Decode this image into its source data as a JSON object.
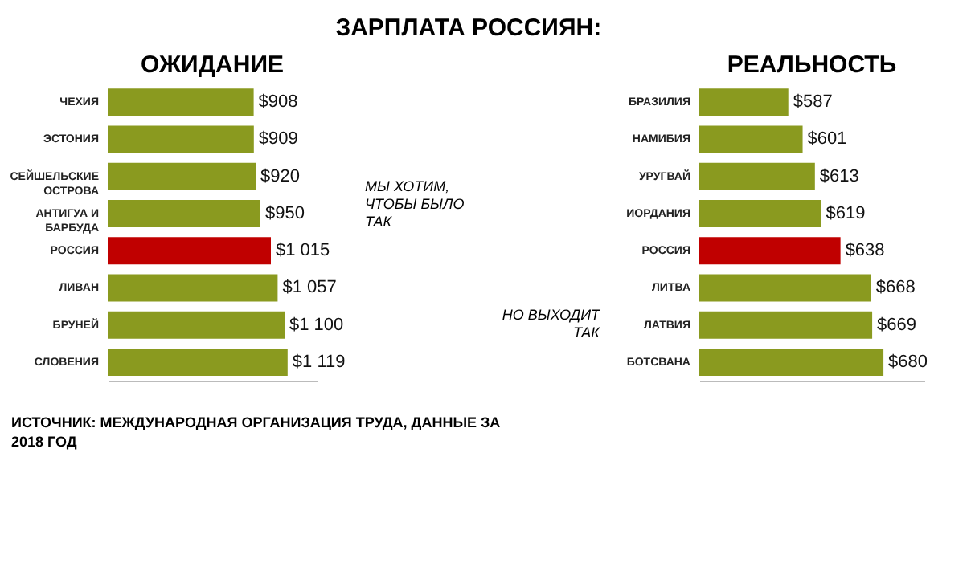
{
  "chart_data": [
    {
      "type": "bar",
      "orientation": "horizontal",
      "title": "ОЖИДАНИЕ",
      "categories": [
        "ЧЕХИЯ",
        "ЭСТОНИЯ",
        "СЕЙШЕЛЬСКИЕ ОСТРОВА",
        "АНТИГУА И БАРБУДА",
        "РОССИЯ",
        "ЛИВАН",
        "БРУНЕЙ",
        "СЛОВЕНИЯ"
      ],
      "values": [
        908,
        909,
        920,
        950,
        1015,
        1057,
        1100,
        1119
      ],
      "colors": [
        "#8a9a1f",
        "#8a9a1f",
        "#8a9a1f",
        "#8a9a1f",
        "#c00000",
        "#8a9a1f",
        "#8a9a1f",
        "#8a9a1f"
      ],
      "value_labels": [
        "$908",
        "$909",
        "$920",
        "$950",
        "$1 015",
        "$1 057",
        "$1 100",
        "$1 119"
      ],
      "xlim": [
        0,
        1300
      ],
      "tick_labels": "y",
      "annotations": [
        "ЗАРПЛАТА РОССИЯН:",
        "МЫ ХОТИМ, ЧТОБЫ БЫЛО ТАК",
        "ИСТОЧНИК: МЕЖДУНАРОДНАЯ ОРГАНИЗАЦИЯ ТРУДА, ДАННЫЕ ЗА 2018 ГОД"
      ]
    },
    {
      "type": "bar",
      "orientation": "horizontal",
      "title": "РЕАЛЬНОСТЬ",
      "categories": [
        "БРАЗИЛИЯ",
        "НАМИБИЯ",
        "УРУГВАЙ",
        "ИОРДАНИЯ",
        "РОССИЯ",
        "ЛИТВА",
        "ЛАТВИЯ",
        "БОТСВАНА"
      ],
      "values": [
        587,
        601,
        613,
        619,
        638,
        668,
        669,
        680
      ],
      "colors": [
        "#8a9a1f",
        "#8a9a1f",
        "#8a9a1f",
        "#8a9a1f",
        "#c00000",
        "#8a9a1f",
        "#8a9a1f",
        "#8a9a1f"
      ],
      "value_labels": [
        "$587",
        "$601",
        "$613",
        "$619",
        "$638",
        "$668",
        "$669",
        "$680"
      ],
      "xlim": [
        500,
        720
      ],
      "tick_labels": "y",
      "annotations": [
        "НО ВЫХОДИТ ТАК"
      ]
    }
  ]
}
